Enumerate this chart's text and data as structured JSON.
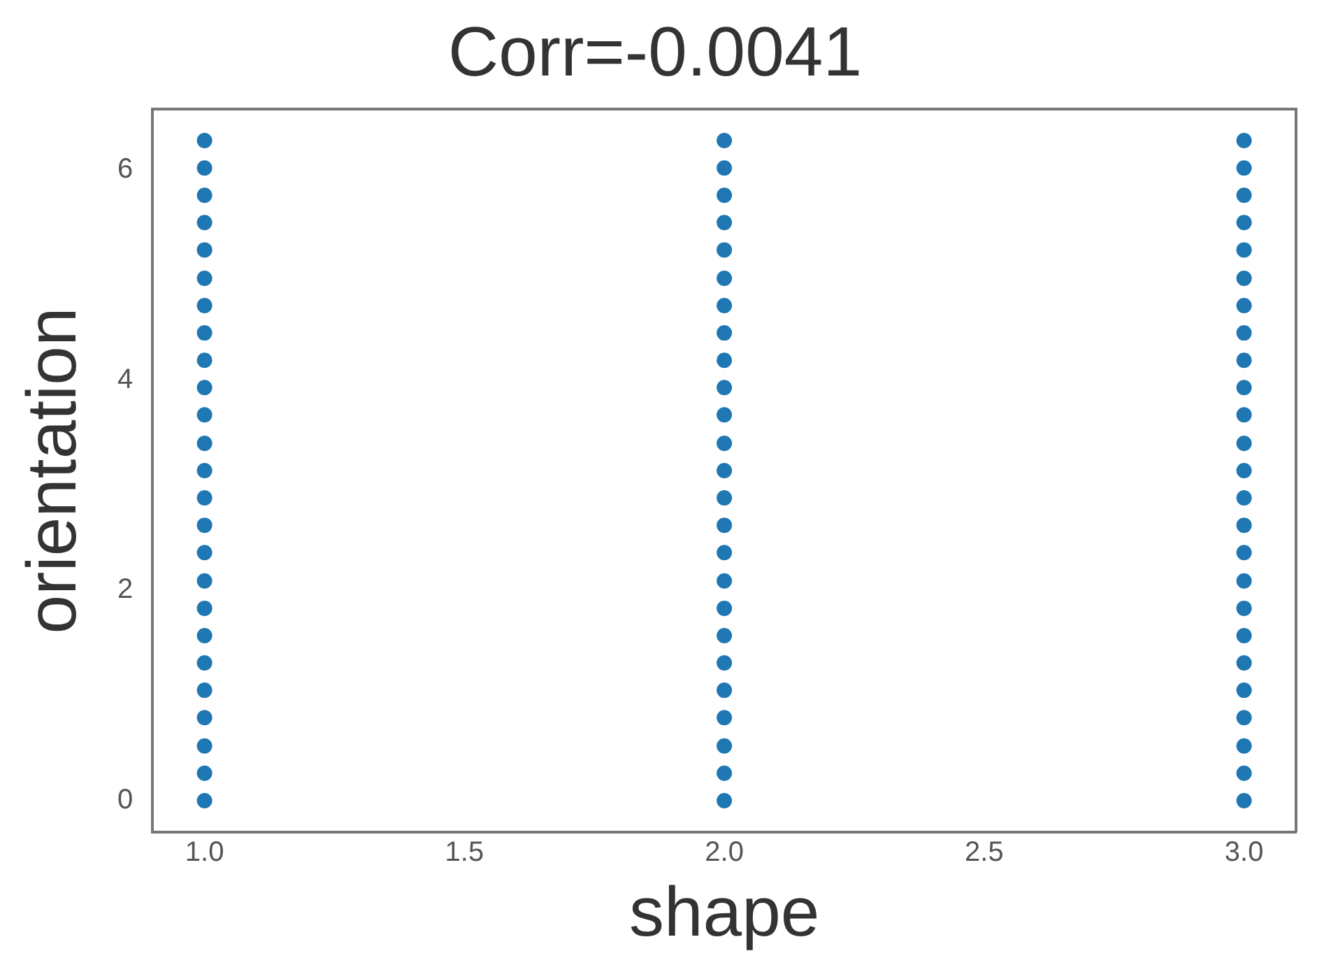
{
  "chart_data": {
    "type": "scatter",
    "title": "Corr=-0.0041",
    "xlabel": "shape",
    "ylabel": "orientation",
    "marker": "circle",
    "grid": false,
    "legend": false,
    "xlim": [
      0.9,
      3.1
    ],
    "xticks": [
      {
        "value": 1,
        "label": "1.0"
      },
      {
        "value": 1.5,
        "label": "1.5"
      },
      {
        "value": 2,
        "label": "2.0"
      },
      {
        "value": 2.5,
        "label": "2.5"
      },
      {
        "value": 3,
        "label": "3.0"
      }
    ],
    "ylim": [
      -0.3,
      6.58
    ],
    "yticks": [
      0,
      2,
      4,
      6
    ],
    "series": [
      {
        "color": "#1f77b4",
        "x": [
          1,
          1,
          1,
          1,
          1,
          1,
          1,
          1,
          1,
          1,
          1,
          1,
          1,
          1,
          1,
          1,
          1,
          1,
          1,
          1,
          1,
          1,
          1,
          1,
          1,
          2,
          2,
          2,
          2,
          2,
          2,
          2,
          2,
          2,
          2,
          2,
          2,
          2,
          2,
          2,
          2,
          2,
          2,
          2,
          2,
          2,
          2,
          2,
          2,
          2,
          3,
          3,
          3,
          3,
          3,
          3,
          3,
          3,
          3,
          3,
          3,
          3,
          3,
          3,
          3,
          3,
          3,
          3,
          3,
          3,
          3,
          3,
          3,
          3,
          3
        ],
        "values": [
          0,
          0.26,
          0.52,
          0.79,
          1.05,
          1.31,
          1.57,
          1.83,
          2.09,
          2.36,
          2.62,
          2.88,
          3.14,
          3.4,
          3.67,
          3.93,
          4.19,
          4.45,
          4.71,
          4.97,
          5.24,
          5.5,
          5.76,
          6.02,
          6.28,
          0,
          0.26,
          0.52,
          0.79,
          1.05,
          1.31,
          1.57,
          1.83,
          2.09,
          2.36,
          2.62,
          2.88,
          3.14,
          3.4,
          3.67,
          3.93,
          4.19,
          4.45,
          4.71,
          4.97,
          5.24,
          5.5,
          5.76,
          6.02,
          6.28,
          0,
          0.26,
          0.52,
          0.79,
          1.05,
          1.31,
          1.57,
          1.83,
          2.09,
          2.36,
          2.62,
          2.88,
          3.14,
          3.4,
          3.67,
          3.93,
          4.19,
          4.45,
          4.71,
          4.97,
          5.24,
          5.5,
          5.76,
          6.02,
          6.28
        ]
      }
    ]
  }
}
